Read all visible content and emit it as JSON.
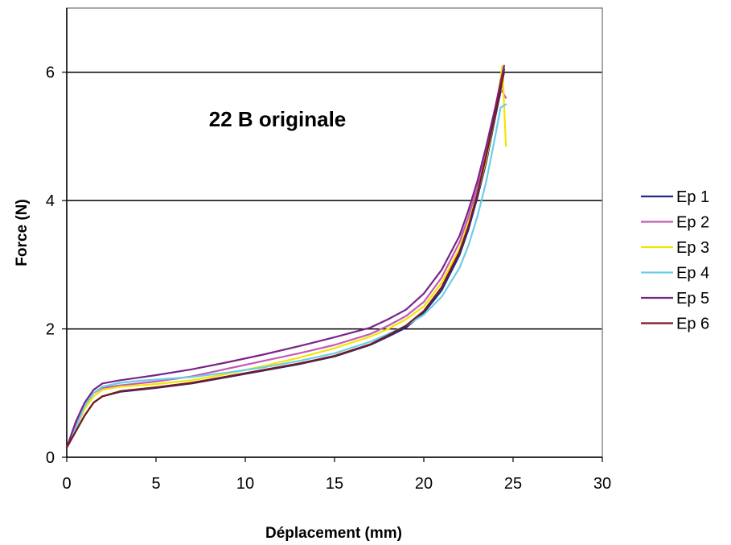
{
  "chart_data": {
    "type": "line",
    "title": "",
    "annotation": "22 B originale",
    "xlabel": "Déplacement (mm)",
    "ylabel": "Force (N)",
    "xlim": [
      0,
      30
    ],
    "ylim": [
      0,
      7
    ],
    "xticks": [
      0,
      5,
      10,
      15,
      20,
      25,
      30
    ],
    "yticks": [
      0,
      2,
      4,
      6
    ],
    "grid": "horizontal",
    "legend_position": "right",
    "series": [
      {
        "name": "Ep 1",
        "color": "#1f2a8c",
        "x": [
          0,
          0.5,
          1,
          1.5,
          2,
          3,
          4,
          5,
          7,
          9,
          11,
          13,
          15,
          17,
          18,
          19,
          20,
          21,
          22,
          22.5,
          23,
          23.5,
          24,
          24.3,
          24.5
        ],
        "y": [
          0.15,
          0.4,
          0.65,
          0.85,
          0.95,
          1.02,
          1.05,
          1.08,
          1.15,
          1.25,
          1.35,
          1.45,
          1.57,
          1.75,
          1.88,
          2.02,
          2.25,
          2.6,
          3.15,
          3.55,
          4.05,
          4.6,
          5.3,
          5.7,
          6.05
        ]
      },
      {
        "name": "Ep 2",
        "color": "#c45ab3",
        "x": [
          0,
          0.5,
          1,
          1.5,
          2,
          3,
          4,
          5,
          7,
          9,
          11,
          13,
          15,
          17,
          18,
          19,
          20,
          21,
          22,
          22.5,
          23,
          23.5,
          24,
          24.3,
          24.6
        ],
        "y": [
          0.15,
          0.5,
          0.8,
          1.0,
          1.08,
          1.12,
          1.15,
          1.18,
          1.26,
          1.38,
          1.5,
          1.62,
          1.75,
          1.92,
          2.05,
          2.2,
          2.42,
          2.8,
          3.35,
          3.75,
          4.2,
          4.75,
          5.4,
          5.75,
          5.6
        ]
      },
      {
        "name": "Ep 3",
        "color": "#f2e600",
        "x": [
          0,
          0.5,
          1,
          1.5,
          2,
          3,
          4,
          5,
          7,
          9,
          11,
          13,
          15,
          17,
          18,
          19,
          20,
          21,
          22,
          22.5,
          23,
          23.5,
          24,
          24.4,
          24.6
        ],
        "y": [
          0.15,
          0.45,
          0.75,
          0.95,
          1.05,
          1.1,
          1.12,
          1.14,
          1.2,
          1.3,
          1.42,
          1.55,
          1.7,
          1.88,
          2.0,
          2.15,
          2.35,
          2.72,
          3.25,
          3.65,
          4.1,
          4.65,
          5.35,
          6.1,
          4.85
        ]
      },
      {
        "name": "Ep 4",
        "color": "#6ccde8",
        "x": [
          0,
          0.5,
          1,
          1.5,
          2,
          3,
          4,
          5,
          7,
          9,
          11,
          13,
          15,
          17,
          18,
          19,
          20,
          21,
          22,
          22.5,
          23,
          23.5,
          24,
          24.3,
          24.6
        ],
        "y": [
          0.15,
          0.45,
          0.8,
          1.0,
          1.1,
          1.16,
          1.19,
          1.21,
          1.25,
          1.32,
          1.4,
          1.5,
          1.62,
          1.8,
          1.92,
          2.05,
          2.22,
          2.5,
          2.95,
          3.3,
          3.75,
          4.3,
          5.0,
          5.45,
          5.5
        ]
      },
      {
        "name": "Ep 5",
        "color": "#7a2388",
        "x": [
          0,
          0.5,
          1,
          1.5,
          2,
          3,
          4,
          5,
          7,
          9,
          11,
          13,
          15,
          17,
          18,
          19,
          20,
          21,
          22,
          22.5,
          23,
          23.5,
          24,
          24.3,
          24.5
        ],
        "y": [
          0.15,
          0.55,
          0.85,
          1.05,
          1.15,
          1.2,
          1.24,
          1.28,
          1.37,
          1.48,
          1.6,
          1.73,
          1.87,
          2.02,
          2.15,
          2.3,
          2.55,
          2.92,
          3.45,
          3.85,
          4.3,
          4.85,
          5.45,
          5.85,
          6.1
        ]
      },
      {
        "name": "Ep 6",
        "color": "#7a1a1a",
        "x": [
          0,
          0.5,
          1,
          1.5,
          2,
          3,
          4,
          5,
          7,
          9,
          11,
          13,
          15,
          17,
          18,
          19,
          20,
          21,
          22,
          22.5,
          23,
          23.5,
          24,
          24.3,
          24.5
        ],
        "y": [
          0.15,
          0.4,
          0.65,
          0.85,
          0.95,
          1.03,
          1.06,
          1.09,
          1.16,
          1.26,
          1.36,
          1.46,
          1.58,
          1.76,
          1.9,
          2.05,
          2.28,
          2.65,
          3.2,
          3.6,
          4.1,
          4.7,
          5.35,
          5.75,
          6.0
        ]
      }
    ]
  }
}
